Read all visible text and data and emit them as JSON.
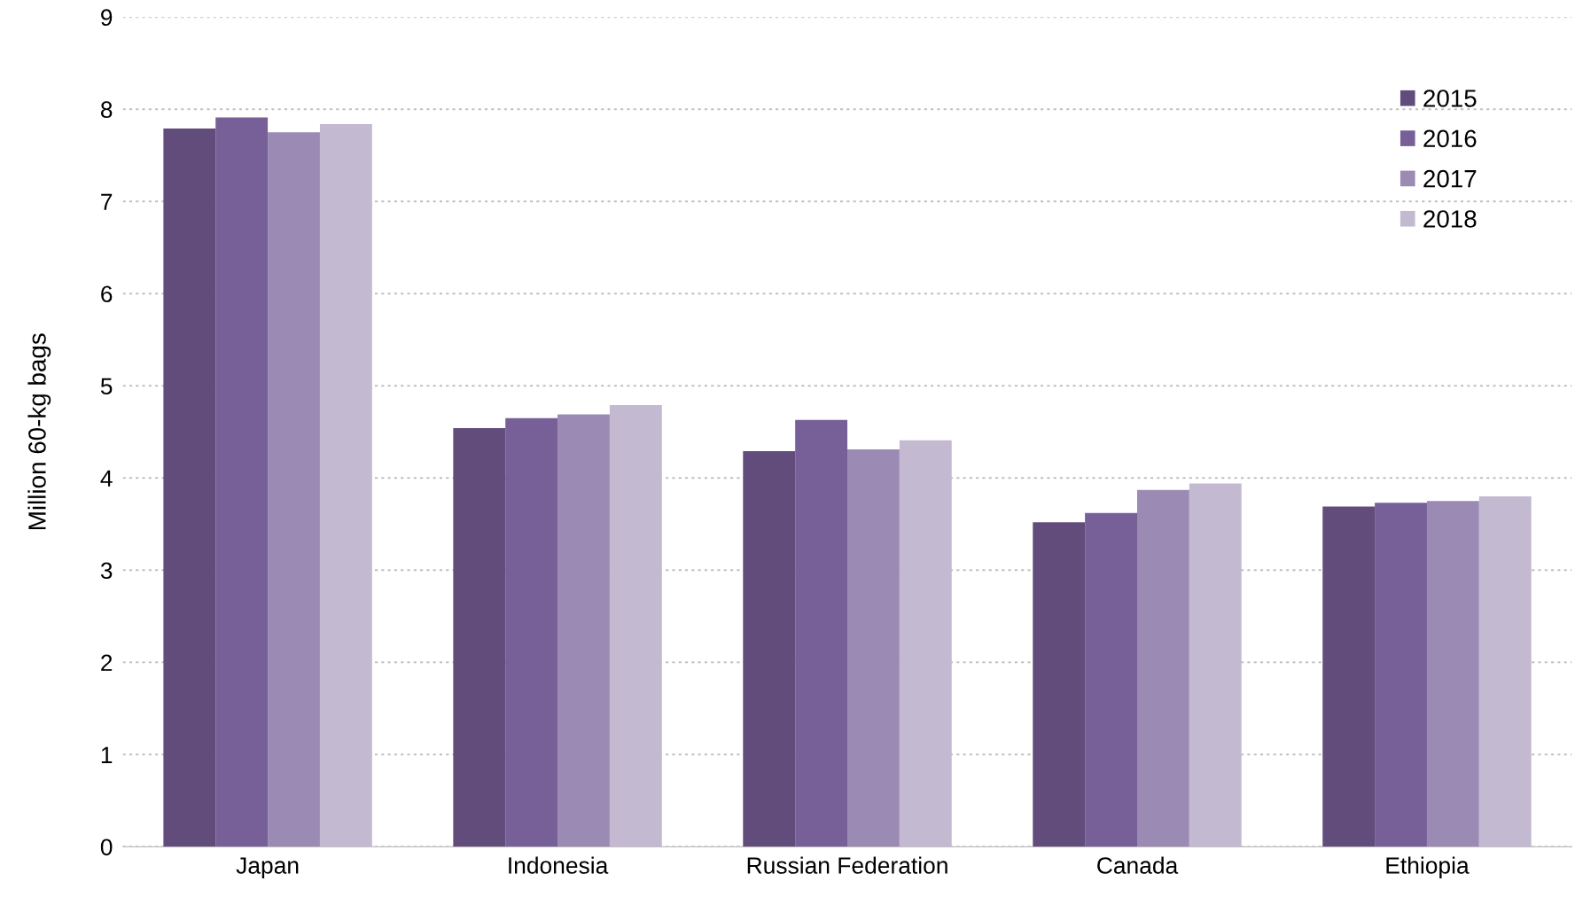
{
  "chart_data": {
    "type": "bar",
    "ylabel": "Million 60-kg bags",
    "categories": [
      "Japan",
      "Indonesia",
      "Russian Federation",
      "Canada",
      "Ethiopia"
    ],
    "series": [
      {
        "name": "2015",
        "color": "#614c7b",
        "values": [
          7.79,
          4.54,
          4.29,
          3.52,
          3.69
        ]
      },
      {
        "name": "2016",
        "color": "#775f97",
        "values": [
          7.91,
          4.65,
          4.63,
          3.62,
          3.73
        ]
      },
      {
        "name": "2017",
        "color": "#9b8ab3",
        "values": [
          7.75,
          4.69,
          4.31,
          3.87,
          3.75
        ]
      },
      {
        "name": "2018",
        "color": "#c3b9d1",
        "values": [
          7.84,
          4.79,
          4.41,
          3.94,
          3.8
        ]
      }
    ],
    "ylim": [
      0,
      9
    ],
    "yticks": [
      0,
      1,
      2,
      3,
      4,
      5,
      6,
      7,
      8,
      9
    ],
    "grid": "y",
    "legend": "top right"
  }
}
